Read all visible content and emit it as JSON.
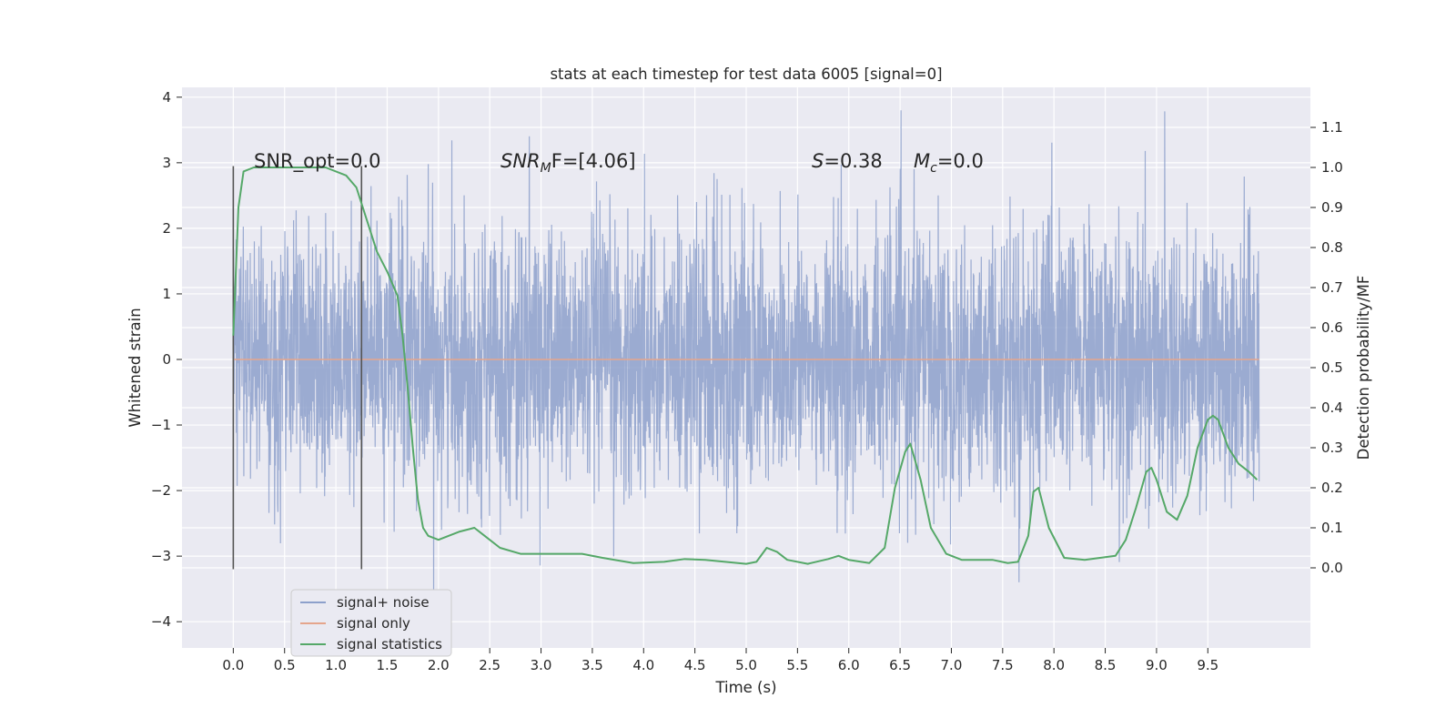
{
  "chart_data": {
    "type": "line",
    "title": "stats at each timestep for test data 6005 [signal=0]",
    "xlabel": "Time (s)",
    "ylabel_left": "Whitened strain",
    "ylabel_right": "Detection probability/MF",
    "xlim": [
      -0.5,
      10.5
    ],
    "ylim_left": [
      -4.4,
      4.15
    ],
    "ylim_right": [
      -0.2,
      1.2
    ],
    "x_ticks": [
      "0.0",
      "0.5",
      "1.0",
      "1.5",
      "2.0",
      "2.5",
      "3.0",
      "3.5",
      "4.0",
      "4.5",
      "5.0",
      "5.5",
      "6.0",
      "6.5",
      "7.0",
      "7.5",
      "8.0",
      "8.5",
      "9.0",
      "9.5"
    ],
    "y_ticks_left": [
      "4",
      "3",
      "2",
      "1",
      "0",
      "−1",
      "−2",
      "−3",
      "−4"
    ],
    "y_ticks_right": [
      "1.1",
      "1.0",
      "0.9",
      "0.8",
      "0.7",
      "0.6",
      "0.5",
      "0.4",
      "0.3",
      "0.2",
      "0.1",
      "0.0"
    ],
    "grid": true,
    "legend_position": "lower-left",
    "annotations": {
      "snr_opt": "SNR_opt=0.0",
      "snr_mf_base": "SNR",
      "snr_mf_sub": "M",
      "snr_mf_rest": "F=[4.06]",
      "s_var": "S",
      "s_rest": "=0.38",
      "mc_var": "M",
      "mc_sub": "c",
      "mc_rest": "=0.0"
    },
    "window_markers_x": [
      0.0,
      1.25
    ],
    "series": [
      {
        "name": "signal+ noise",
        "color": "#8da0cb",
        "kind": "noise",
        "x_range": [
          0.0,
          10.0
        ],
        "description_range_y": [
          -4.0,
          3.8
        ]
      },
      {
        "name": "signal only",
        "color": "#e5a58c",
        "x": [
          0.0,
          10.0
        ],
        "y": [
          0.0,
          0.0
        ]
      },
      {
        "name": "signal statistics",
        "color": "#55a868",
        "axis": "right",
        "x": [
          0.0,
          0.05,
          0.1,
          0.2,
          0.35,
          0.6,
          0.9,
          1.1,
          1.2,
          1.3,
          1.4,
          1.5,
          1.6,
          1.65,
          1.7,
          1.75,
          1.8,
          1.85,
          1.9,
          2.0,
          2.1,
          2.2,
          2.35,
          2.45,
          2.6,
          2.8,
          3.0,
          3.4,
          3.6,
          3.9,
          4.2,
          4.4,
          4.6,
          5.0,
          5.1,
          5.2,
          5.3,
          5.4,
          5.6,
          5.8,
          5.9,
          6.0,
          6.2,
          6.35,
          6.45,
          6.55,
          6.6,
          6.7,
          6.8,
          6.95,
          7.1,
          7.4,
          7.55,
          7.65,
          7.75,
          7.8,
          7.85,
          7.95,
          8.1,
          8.3,
          8.6,
          8.7,
          8.8,
          8.9,
          8.95,
          9.0,
          9.05,
          9.1,
          9.2,
          9.3,
          9.4,
          9.5,
          9.55,
          9.6,
          9.7,
          9.8,
          9.9,
          9.98
        ],
        "y": [
          0.58,
          0.9,
          0.99,
          1.0,
          1.0,
          1.0,
          1.0,
          0.98,
          0.95,
          0.87,
          0.79,
          0.74,
          0.68,
          0.58,
          0.45,
          0.3,
          0.17,
          0.1,
          0.08,
          0.07,
          0.08,
          0.09,
          0.1,
          0.08,
          0.05,
          0.035,
          0.035,
          0.035,
          0.025,
          0.012,
          0.015,
          0.022,
          0.02,
          0.01,
          0.015,
          0.05,
          0.04,
          0.02,
          0.01,
          0.022,
          0.03,
          0.02,
          0.012,
          0.05,
          0.2,
          0.29,
          0.31,
          0.22,
          0.1,
          0.035,
          0.02,
          0.02,
          0.012,
          0.015,
          0.08,
          0.19,
          0.2,
          0.1,
          0.025,
          0.02,
          0.03,
          0.07,
          0.15,
          0.24,
          0.25,
          0.22,
          0.18,
          0.14,
          0.12,
          0.18,
          0.3,
          0.37,
          0.38,
          0.37,
          0.3,
          0.26,
          0.24,
          0.22
        ]
      }
    ]
  }
}
